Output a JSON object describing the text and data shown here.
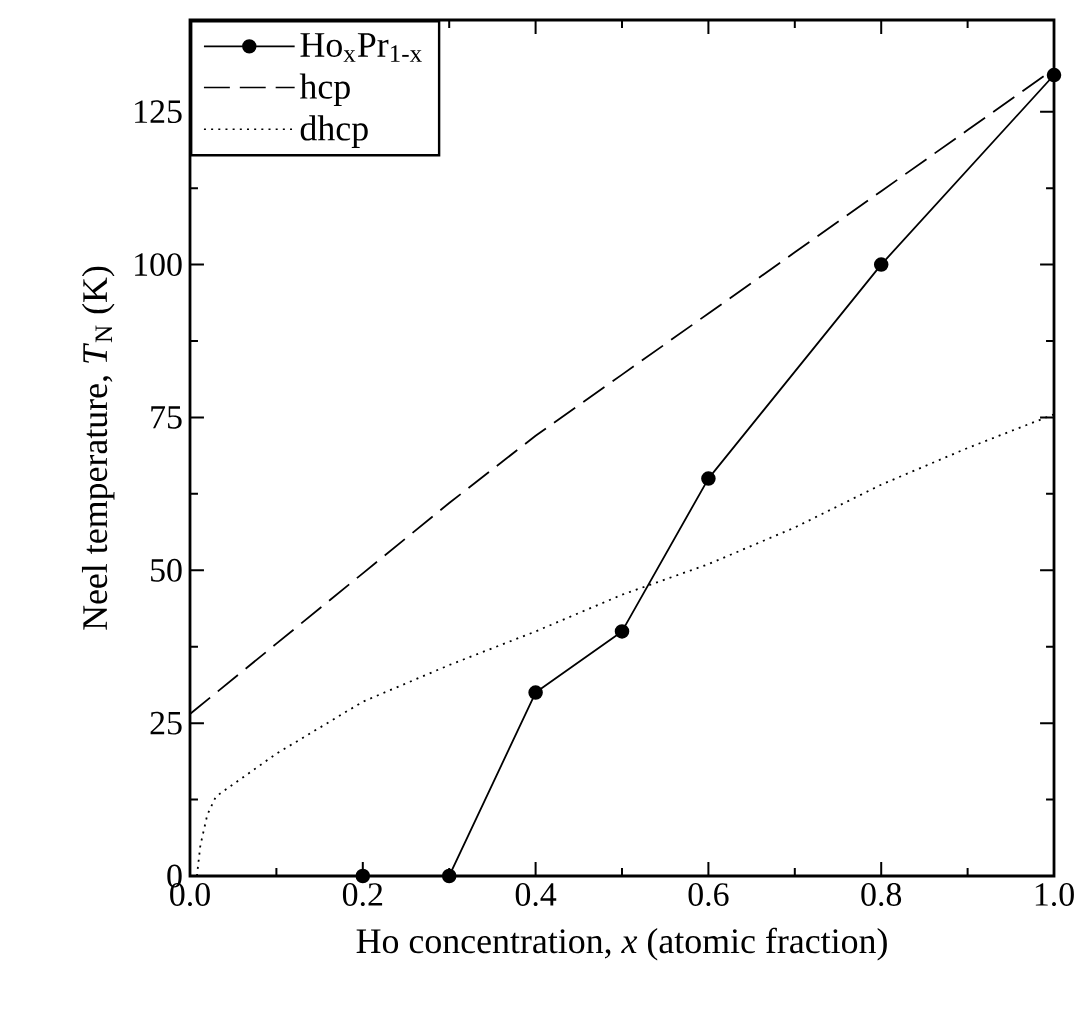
{
  "chart_data": {
    "type": "line",
    "xlabel": "Ho concentration, *x* (atomic fraction)",
    "ylabel": "Neel temperature, *T*$_{N}$ (K)",
    "xlim": [
      0,
      1
    ],
    "ylim": [
      0,
      140
    ],
    "xticks": [
      {
        "value": 0,
        "label": "0.0"
      },
      0.2,
      0.4,
      0.6,
      0.8,
      {
        "value": 1,
        "label": "1.0"
      }
    ],
    "yticks": [
      0,
      25,
      50,
      75,
      100,
      125
    ],
    "grid": false,
    "legend": "top left",
    "series": [
      {
        "name": "Ho$_{x}$Pr$_{1-x}$",
        "color": "#000000",
        "marker": "circle",
        "line_style": "solid",
        "x": [
          0.2,
          0.3,
          0.4,
          0.5,
          0.6,
          0.8,
          1.0
        ],
        "values": [
          0,
          0,
          30,
          40,
          65,
          100,
          131
        ]
      },
      {
        "name": "hcp",
        "color": "#000000",
        "marker": "none",
        "line_style": "dashed",
        "x": [
          0,
          0.1,
          0.2,
          0.3,
          0.4,
          0.5,
          0.6,
          0.7,
          0.8,
          0.9,
          1.0
        ],
        "values": [
          26.5,
          38,
          49.5,
          61,
          72,
          82,
          92,
          102,
          112,
          122,
          132
        ]
      },
      {
        "name": "dhcp",
        "color": "#000000",
        "marker": "none",
        "line_style": "dotted",
        "x": [
          0.008,
          0.012,
          0.02,
          0.03,
          0.1,
          0.2,
          0.3,
          0.4,
          0.5,
          0.6,
          0.7,
          0.8,
          0.9,
          1.0
        ],
        "values": [
          0,
          5,
          10,
          13,
          20,
          28.5,
          34.5,
          40,
          46,
          51,
          57,
          64,
          70,
          75.5
        ]
      }
    ]
  }
}
